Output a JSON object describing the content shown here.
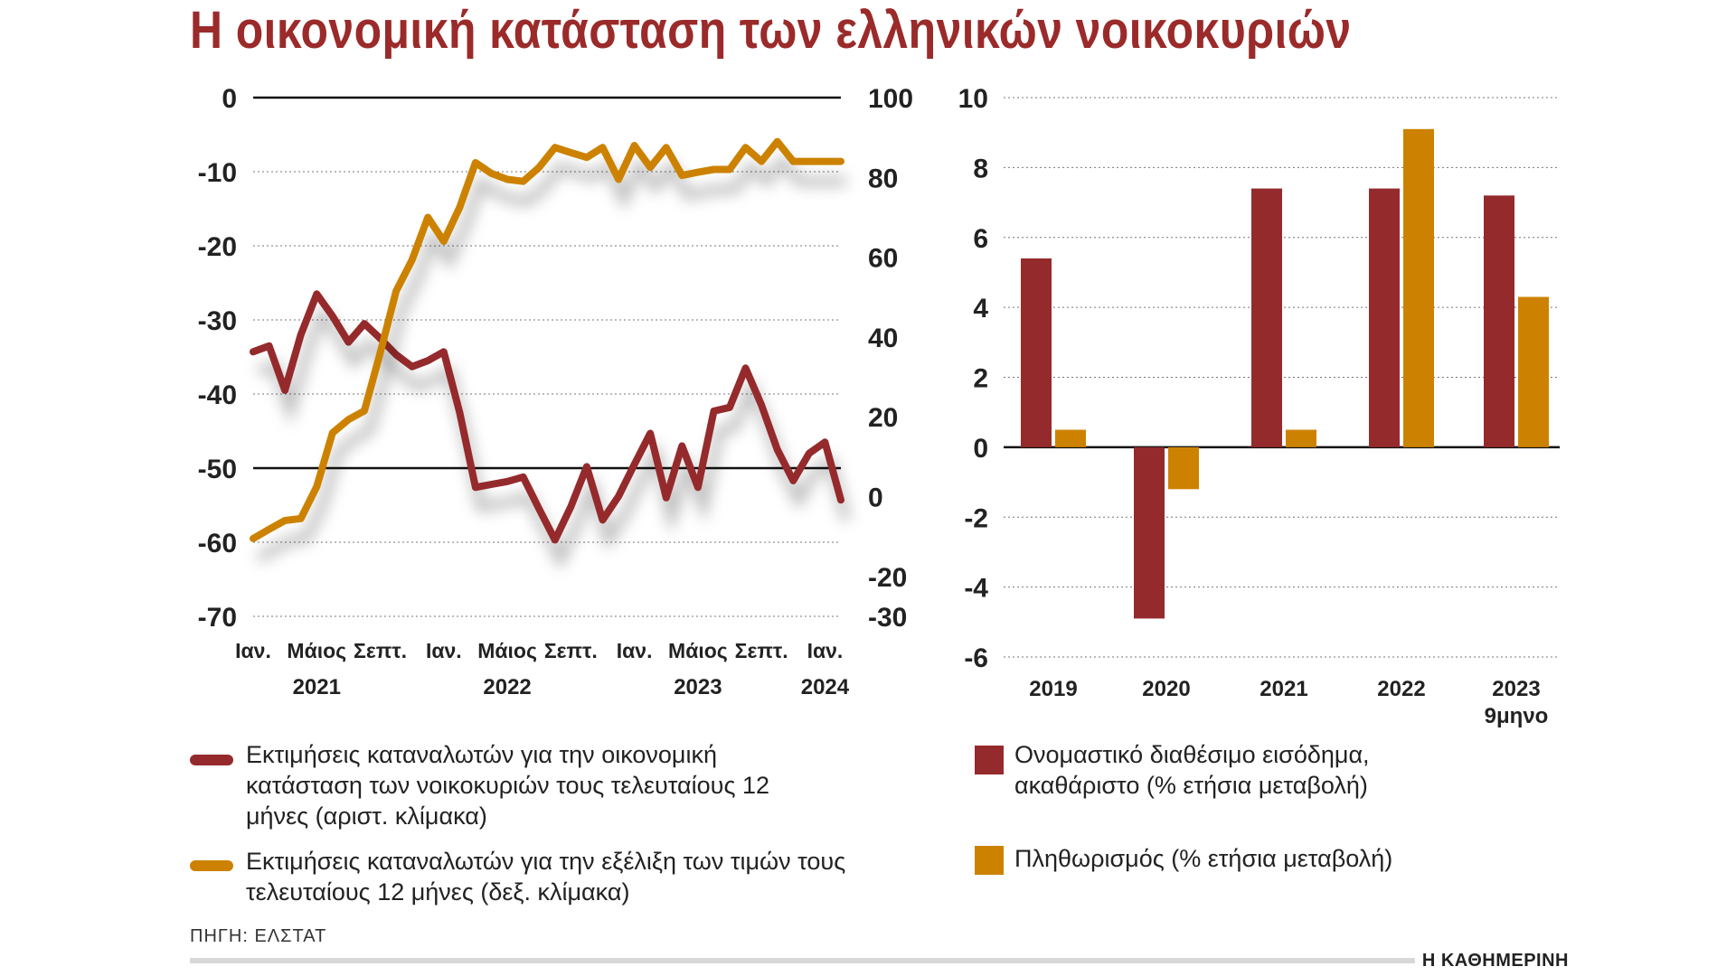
{
  "title": "Η οικονομική κατάσταση των ελληνικών νοικοκυριών",
  "colors": {
    "red": "#952a2c",
    "orange": "#cc8200",
    "grid": "#777777"
  },
  "chart_data": [
    {
      "type": "line",
      "left_axis": {
        "ylim": [
          -70,
          0
        ],
        "ticks": [
          0,
          -10,
          -20,
          -30,
          -40,
          -50,
          -60,
          -70
        ]
      },
      "right_axis": {
        "ylim": [
          -30,
          100
        ],
        "ticks": [
          100,
          80,
          60,
          40,
          20,
          0,
          -20,
          -30
        ]
      },
      "month_labels": [
        "Ιαν.",
        "Μάιος",
        "Σεπτ.",
        "Ιαν.",
        "Μάιος",
        "Σεπτ.",
        "Ιαν.",
        "Μάιος",
        "Σεπτ.",
        "Ιαν."
      ],
      "month_index": [
        0,
        4,
        8,
        12,
        16,
        20,
        24,
        28,
        32,
        36
      ],
      "year_labels": [
        "2021",
        "2022",
        "2023",
        "2024"
      ],
      "year_index": [
        4,
        16,
        28,
        36
      ],
      "series": [
        {
          "name": "Εκτιμήσεις καταναλωτών για την οικονομική κατάσταση των νοικοκυριών τους τελευταίους 12 μήνες (αριστ. κλίμακα)",
          "axis": "left",
          "color": "#952a2c",
          "x": [
            0,
            1,
            2,
            3,
            4,
            5,
            6,
            7,
            8,
            9,
            10,
            11,
            12,
            13,
            14,
            15,
            16,
            17,
            18,
            19,
            20,
            21,
            22,
            23,
            24,
            25,
            26,
            27,
            28,
            29,
            30,
            31,
            32,
            33,
            34,
            35,
            36,
            37
          ],
          "values": [
            -34.3,
            -33.5,
            -39.5,
            -32,
            -26.5,
            -29.5,
            -33,
            -30.5,
            -32.5,
            -34.7,
            -36.3,
            -35.5,
            -34.3,
            -42.5,
            -52.6,
            -52.2,
            -51.8,
            -51.2,
            -55.5,
            -59.7,
            -55.2,
            -49.8,
            -57,
            -53.8,
            -49.5,
            -45.3,
            -54,
            -47,
            -52.6,
            -42.3,
            -41.8,
            -36.5,
            -41.5,
            -47.5,
            -51.7,
            -48,
            -46.5,
            -54.3
          ]
        },
        {
          "name": "Εκτιμήσεις καταναλωτών για την εξέλιξη των τιμών τους τελευταίους 12 μήνες (δεξ. κλίμακα)",
          "axis": "right",
          "color": "#cc8200",
          "x": [
            0,
            1,
            2,
            3,
            4,
            5,
            6,
            7,
            8,
            9,
            10,
            11,
            12,
            13,
            14,
            15,
            16,
            17,
            18,
            19,
            20,
            21,
            22,
            23,
            24,
            25,
            26,
            27,
            28,
            29,
            30,
            31,
            32,
            33,
            34,
            35,
            36,
            37
          ],
          "values": [
            -10.5,
            -8.2,
            -6,
            -5.5,
            2.5,
            16,
            19.3,
            21.5,
            36,
            51.5,
            59.3,
            70,
            64,
            72.5,
            83.7,
            81,
            79.5,
            79,
            82.5,
            87.5,
            86.2,
            85,
            87.5,
            79.5,
            88,
            82.5,
            87.5,
            80.5,
            81.3,
            82,
            82,
            87.5,
            84,
            89,
            84,
            84,
            84,
            84
          ]
        }
      ]
    },
    {
      "type": "bar",
      "ylim": [
        -6,
        10
      ],
      "yticks": [
        10,
        8,
        6,
        4,
        2,
        0,
        -2,
        -4,
        -6
      ],
      "categories": [
        "2019",
        "2020",
        "2021",
        "2022",
        "2023"
      ],
      "category_sublabels": [
        "",
        "",
        "",
        "",
        "9μηνο"
      ],
      "series": [
        {
          "name": "Ονομαστικό διαθέσιμο εισόδημα, ακαθάριστο (% ετήσια μεταβολή)",
          "color": "#952a2c",
          "values": [
            5.4,
            -4.9,
            7.4,
            7.4,
            7.2
          ]
        },
        {
          "name": "Πληθωρισμός (% ετήσια μεταβολή)",
          "color": "#cc8200",
          "values": [
            0.5,
            -1.2,
            0.5,
            9.1,
            4.3
          ]
        }
      ]
    }
  ],
  "legend": {
    "red_line": "Εκτιμήσεις καταναλωτών για την οικονομική κατάσταση των νοικοκυριών τους τελευταίους 12 μήνες (αριστ. κλίμακα)",
    "orange_line": "Εκτιμήσεις καταναλωτών για την εξέλιξη των τιμών τους τελευταίους 12 μήνες (δεξ. κλίμακα)",
    "red_bar": "Ονομαστικό διαθέσιμο εισόδημα, ακαθάριστο (% ετήσια μεταβολή)",
    "orange_bar": "Πληθωρισμός (% ετήσια μεταβολή)"
  },
  "source": "ΠΗΓΗ: ΕΛΣΤΑΤ",
  "brand": "Η ΚΑΘΗΜΕΡΙΝΗ"
}
